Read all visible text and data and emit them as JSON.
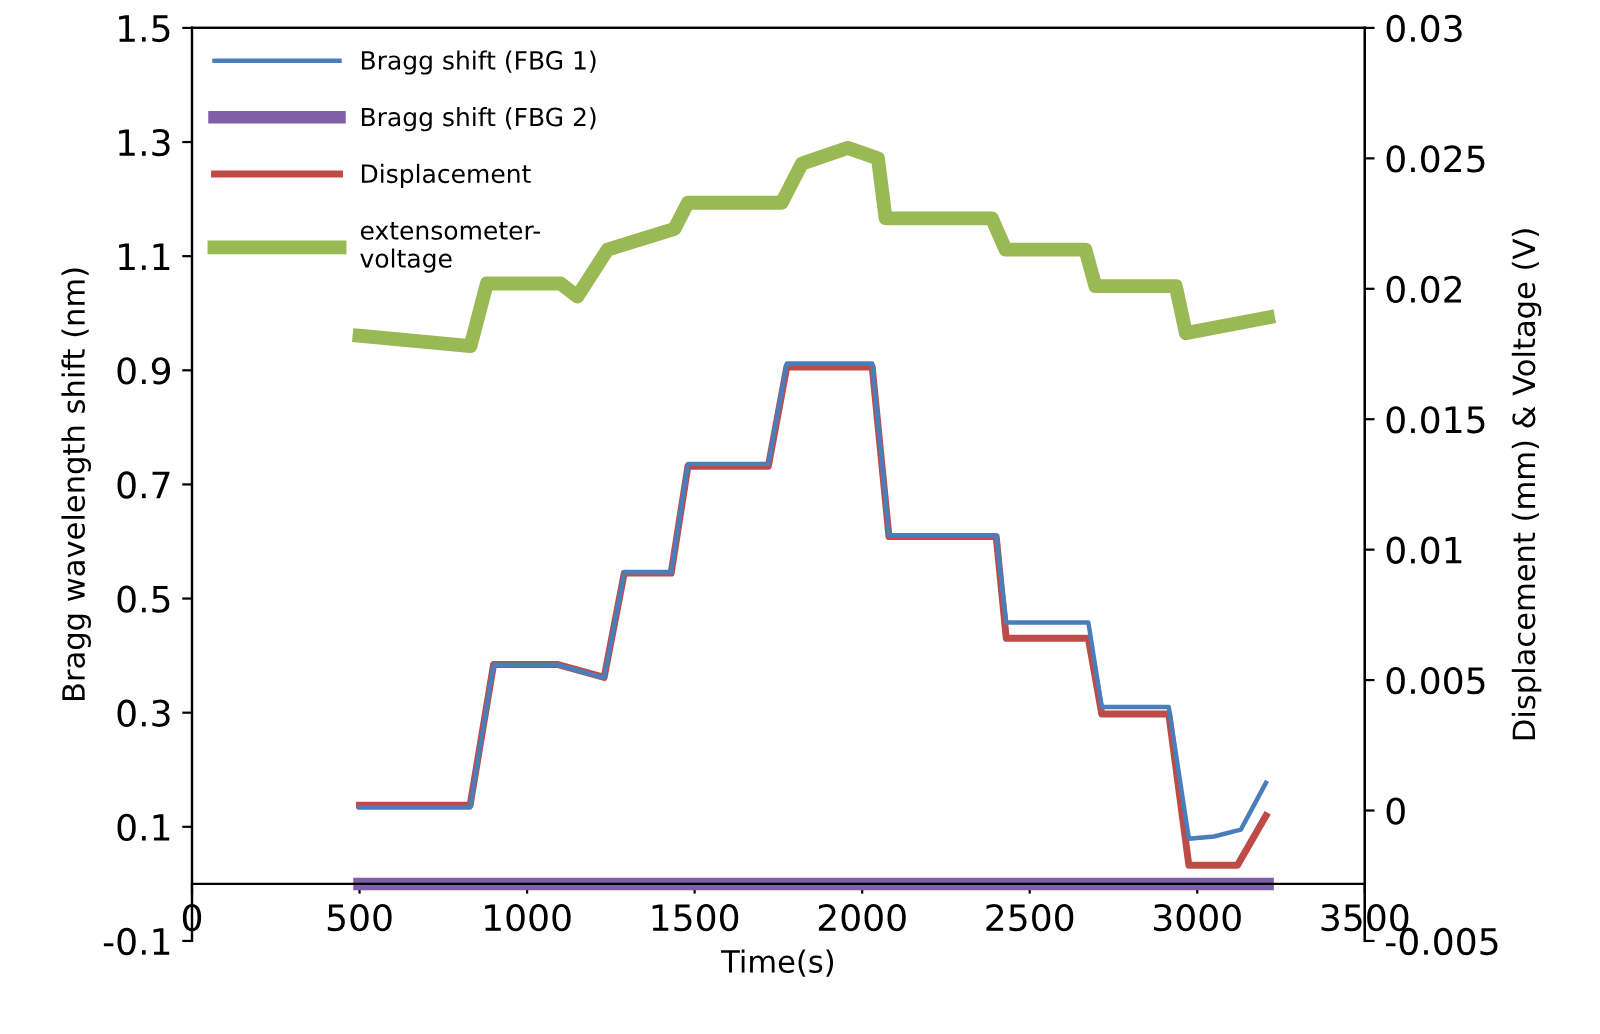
{
  "chart_data": {
    "type": "line",
    "xlabel": "Time(s)",
    "ylabel": "Bragg wavelength shift (nm)",
    "y2label": "Displacement (mm) & Voltage (V)",
    "xlim": [
      0,
      3500
    ],
    "xticks": [
      0,
      500,
      1000,
      1500,
      2000,
      2500,
      3000,
      3500
    ],
    "ylim": [
      -0.1,
      1.5
    ],
    "yticks": [
      -0.1,
      0.1,
      0.3,
      0.5,
      0.7,
      0.9,
      1.1,
      1.3,
      1.5
    ],
    "y2lim": [
      -0.005,
      0.03
    ],
    "y2ticks": [
      -0.005,
      0,
      0.005,
      0.01,
      0.015,
      0.02,
      0.025,
      0.03
    ],
    "legend": "top left",
    "grid": false,
    "series": [
      {
        "name": "Bragg shift (FBG 1)",
        "color": "#4a7ebb",
        "axis": "y",
        "x": [
          500,
          830,
          900,
          1090,
          1230,
          1290,
          1430,
          1480,
          1720,
          1775,
          2030,
          2080,
          2400,
          2430,
          2675,
          2715,
          2915,
          2975,
          3050,
          3130,
          3205
        ],
        "values": [
          0.134,
          0.134,
          0.384,
          0.384,
          0.361,
          0.546,
          0.546,
          0.736,
          0.736,
          0.912,
          0.912,
          0.611,
          0.611,
          0.458,
          0.458,
          0.31,
          0.31,
          0.079,
          0.083,
          0.095,
          0.177
        ]
      },
      {
        "name": "Bragg shift (FBG 2)",
        "color": "#7f5fa8",
        "axis": "y",
        "x": [
          500,
          3210
        ],
        "values": [
          0,
          0
        ]
      },
      {
        "name": "Displacement",
        "color": "#be4b48",
        "axis": "y2",
        "x": [
          500,
          830,
          900,
          1090,
          1230,
          1290,
          1430,
          1480,
          1720,
          1775,
          2030,
          2080,
          2400,
          2430,
          2675,
          2715,
          2915,
          2975,
          3120,
          3205
        ],
        "values": [
          0.0002,
          0.0002,
          0.0056,
          0.0056,
          0.0051,
          0.0091,
          0.0091,
          0.0132,
          0.0132,
          0.017,
          0.017,
          0.0105,
          0.0105,
          0.0066,
          0.0066,
          0.0037,
          0.0037,
          -0.0021,
          -0.0021,
          -0.0002
        ]
      },
      {
        "name": "extensometer-\nvoltage",
        "color": "#98b954",
        "axis": "y2",
        "x": [
          500,
          831,
          880,
          1100,
          1150,
          1240,
          1440,
          1480,
          1760,
          1820,
          1957,
          2047,
          2070,
          2387,
          2428,
          2666,
          2696,
          2936,
          2966,
          3211
        ],
        "values": [
          0.0182,
          0.0178,
          0.0202,
          0.0202,
          0.0197,
          0.0215,
          0.0223,
          0.0233,
          0.0233,
          0.0248,
          0.0254,
          0.025,
          0.0227,
          0.0227,
          0.0215,
          0.0215,
          0.0201,
          0.0201,
          0.0183,
          0.0189
        ]
      }
    ]
  }
}
